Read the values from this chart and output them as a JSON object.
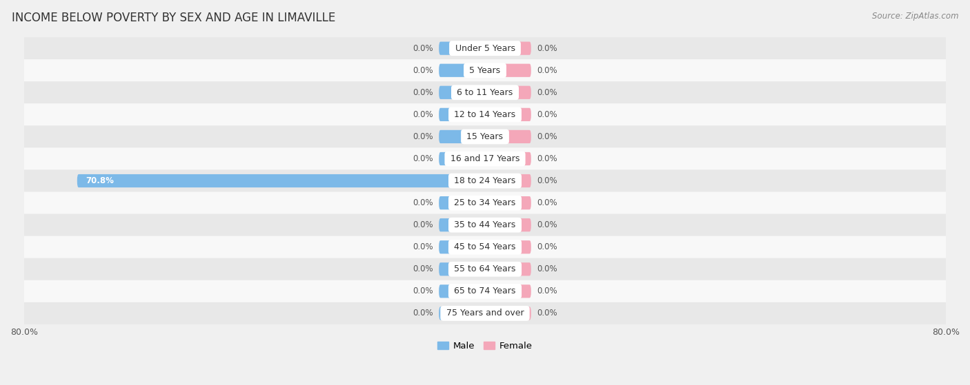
{
  "title": "INCOME BELOW POVERTY BY SEX AND AGE IN LIMAVILLE",
  "source_text": "Source: ZipAtlas.com",
  "categories": [
    "Under 5 Years",
    "5 Years",
    "6 to 11 Years",
    "12 to 14 Years",
    "15 Years",
    "16 and 17 Years",
    "18 to 24 Years",
    "25 to 34 Years",
    "35 to 44 Years",
    "45 to 54 Years",
    "55 to 64 Years",
    "65 to 74 Years",
    "75 Years and over"
  ],
  "male_values": [
    0.0,
    0.0,
    0.0,
    0.0,
    0.0,
    0.0,
    70.8,
    0.0,
    0.0,
    0.0,
    0.0,
    0.0,
    0.0
  ],
  "female_values": [
    0.0,
    0.0,
    0.0,
    0.0,
    0.0,
    0.0,
    0.0,
    0.0,
    0.0,
    0.0,
    0.0,
    0.0,
    0.0
  ],
  "male_color": "#7cb9e8",
  "female_color": "#f4a7b9",
  "male_label": "Male",
  "female_label": "Female",
  "max_value": 80.0,
  "min_bar_width": 8.0,
  "background_color": "#f0f0f0",
  "row_colors": [
    "#e8e8e8",
    "#f8f8f8"
  ],
  "title_fontsize": 12,
  "source_fontsize": 8.5,
  "tick_fontsize": 9,
  "label_fontsize": 8.5,
  "category_fontsize": 9
}
